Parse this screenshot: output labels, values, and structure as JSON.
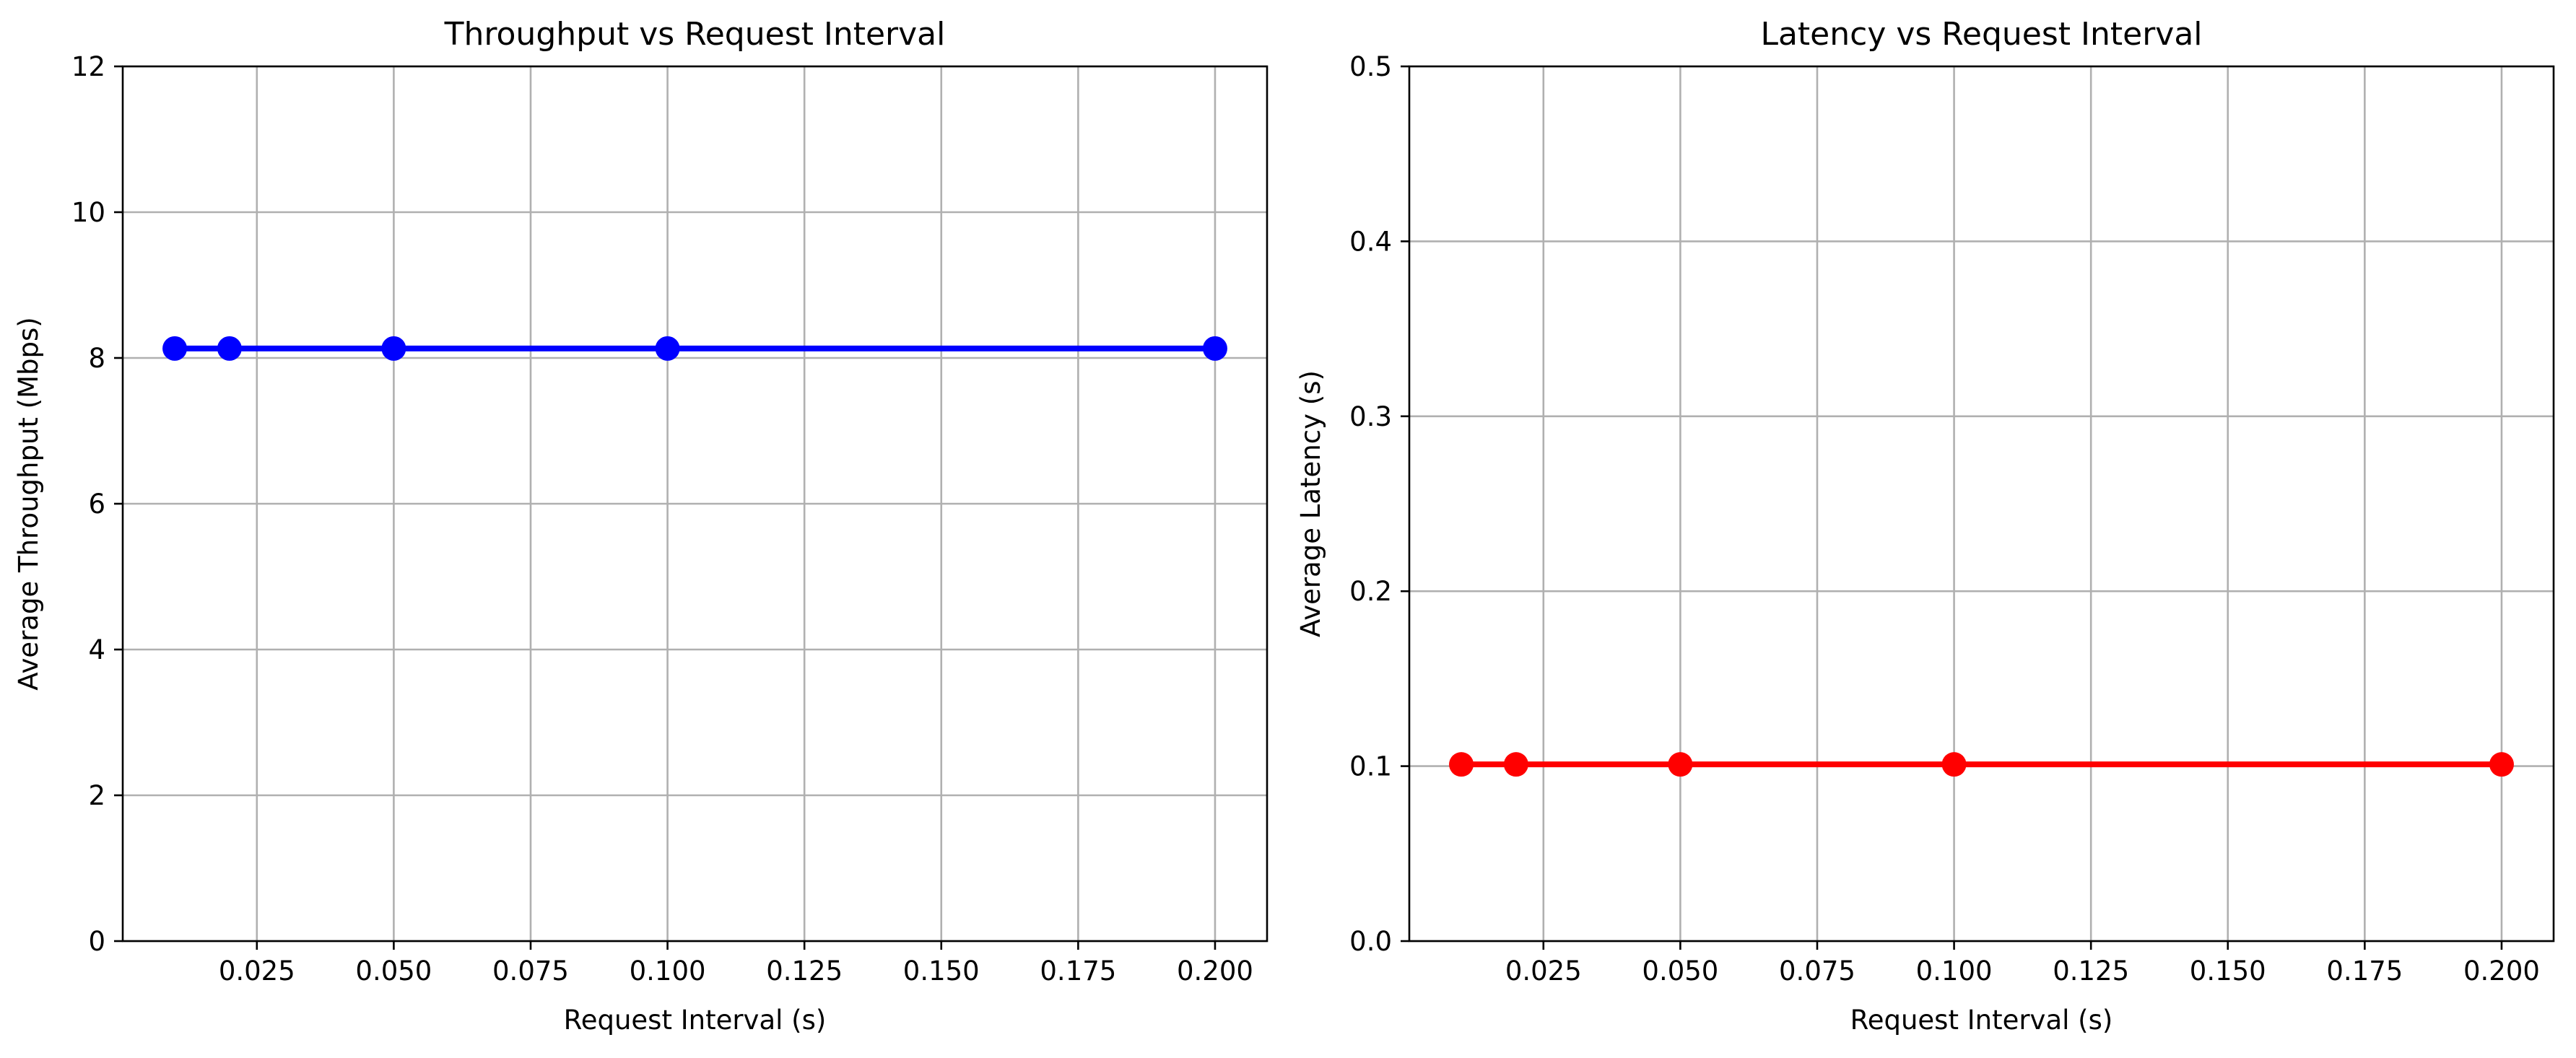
{
  "chart_data": [
    {
      "type": "line",
      "title": "Throughput vs Request Interval",
      "xlabel": "Request Interval (s)",
      "ylabel": "Average Throughput (Mbps)",
      "xlim": [
        0.0005,
        0.2095
      ],
      "ylim": [
        0,
        12
      ],
      "xticks": [
        0.025,
        0.05,
        0.075,
        0.1,
        0.125,
        0.15,
        0.175,
        0.2
      ],
      "xtick_labels": [
        "0.025",
        "0.050",
        "0.075",
        "0.100",
        "0.125",
        "0.150",
        "0.175",
        "0.200"
      ],
      "yticks": [
        0,
        2,
        4,
        6,
        8,
        10,
        12
      ],
      "ytick_labels": [
        "0",
        "2",
        "4",
        "6",
        "8",
        "10",
        "12"
      ],
      "grid": true,
      "series": [
        {
          "color": "#0000ff",
          "marker": "circle",
          "x": [
            0.01,
            0.02,
            0.05,
            0.1,
            0.2
          ],
          "y": [
            8.13,
            8.13,
            8.13,
            8.13,
            8.13
          ]
        }
      ]
    },
    {
      "type": "line",
      "title": "Latency vs Request Interval",
      "xlabel": "Request Interval (s)",
      "ylabel": "Average Latency (s)",
      "xlim": [
        0.0005,
        0.2095
      ],
      "ylim": [
        0,
        0.5
      ],
      "xticks": [
        0.025,
        0.05,
        0.075,
        0.1,
        0.125,
        0.15,
        0.175,
        0.2
      ],
      "xtick_labels": [
        "0.025",
        "0.050",
        "0.075",
        "0.100",
        "0.125",
        "0.150",
        "0.175",
        "0.200"
      ],
      "yticks": [
        0,
        0.1,
        0.2,
        0.3,
        0.4,
        0.5
      ],
      "ytick_labels": [
        "0.0",
        "0.1",
        "0.2",
        "0.3",
        "0.4",
        "0.5"
      ],
      "grid": true,
      "series": [
        {
          "color": "#ff0000",
          "marker": "circle",
          "x": [
            0.01,
            0.02,
            0.05,
            0.1,
            0.2
          ],
          "y": [
            0.101,
            0.101,
            0.101,
            0.101,
            0.101
          ]
        }
      ]
    }
  ]
}
